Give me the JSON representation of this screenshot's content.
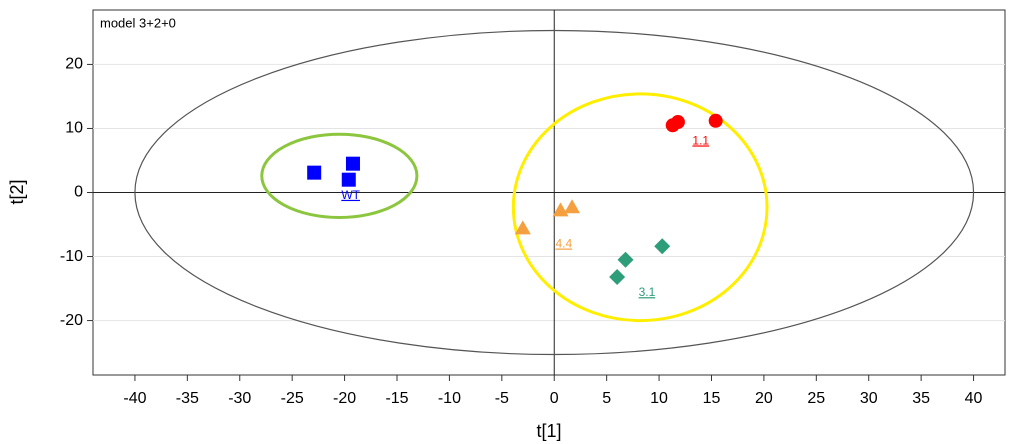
{
  "chart_data": {
    "type": "scatter",
    "annotation": "model 3+2+0",
    "xlabel": "t[1]",
    "ylabel": "t[2]",
    "xlim": [
      -44,
      43
    ],
    "ylim": [
      -28.5,
      28.5
    ],
    "xticks": [
      -40,
      -35,
      -30,
      -25,
      -20,
      -15,
      -10,
      -5,
      0,
      5,
      10,
      15,
      20,
      25,
      30,
      35,
      40
    ],
    "yticks": [
      -20,
      -10,
      0,
      10,
      20
    ],
    "grid": true,
    "series": [
      {
        "name": "WT",
        "color": "#0000ff",
        "marker": "square",
        "x": [
          -22.9,
          -19.2,
          -19.6
        ],
        "y": [
          3.1,
          4.5,
          2.0
        ]
      },
      {
        "name": "1.1",
        "color": "#ff0000",
        "marker": "circle",
        "x": [
          11.3,
          11.8,
          15.4
        ],
        "y": [
          10.5,
          11.0,
          11.2
        ]
      },
      {
        "name": "4.4",
        "color": "#f5a040",
        "marker": "triangle",
        "x": [
          -3.0,
          0.6,
          1.7
        ],
        "y": [
          -5.6,
          -2.8,
          -2.3
        ]
      },
      {
        "name": "3.1",
        "color": "#2e9e7a",
        "marker": "diamond",
        "x": [
          6.8,
          6.0,
          10.3
        ],
        "y": [
          -10.5,
          -13.2,
          -8.4
        ]
      }
    ],
    "ellipses": [
      {
        "cx": 0,
        "cy": 0,
        "rx": 40,
        "ry": 25.3,
        "color": "#555555"
      },
      {
        "cx": -20.5,
        "cy": 2.6,
        "rx": 7.4,
        "ry": 6.5,
        "color": "#8cc63f"
      },
      {
        "cx": 8.2,
        "cy": -2.3,
        "rx": 12.1,
        "ry": 17.7,
        "color": "#ffee00"
      }
    ]
  }
}
